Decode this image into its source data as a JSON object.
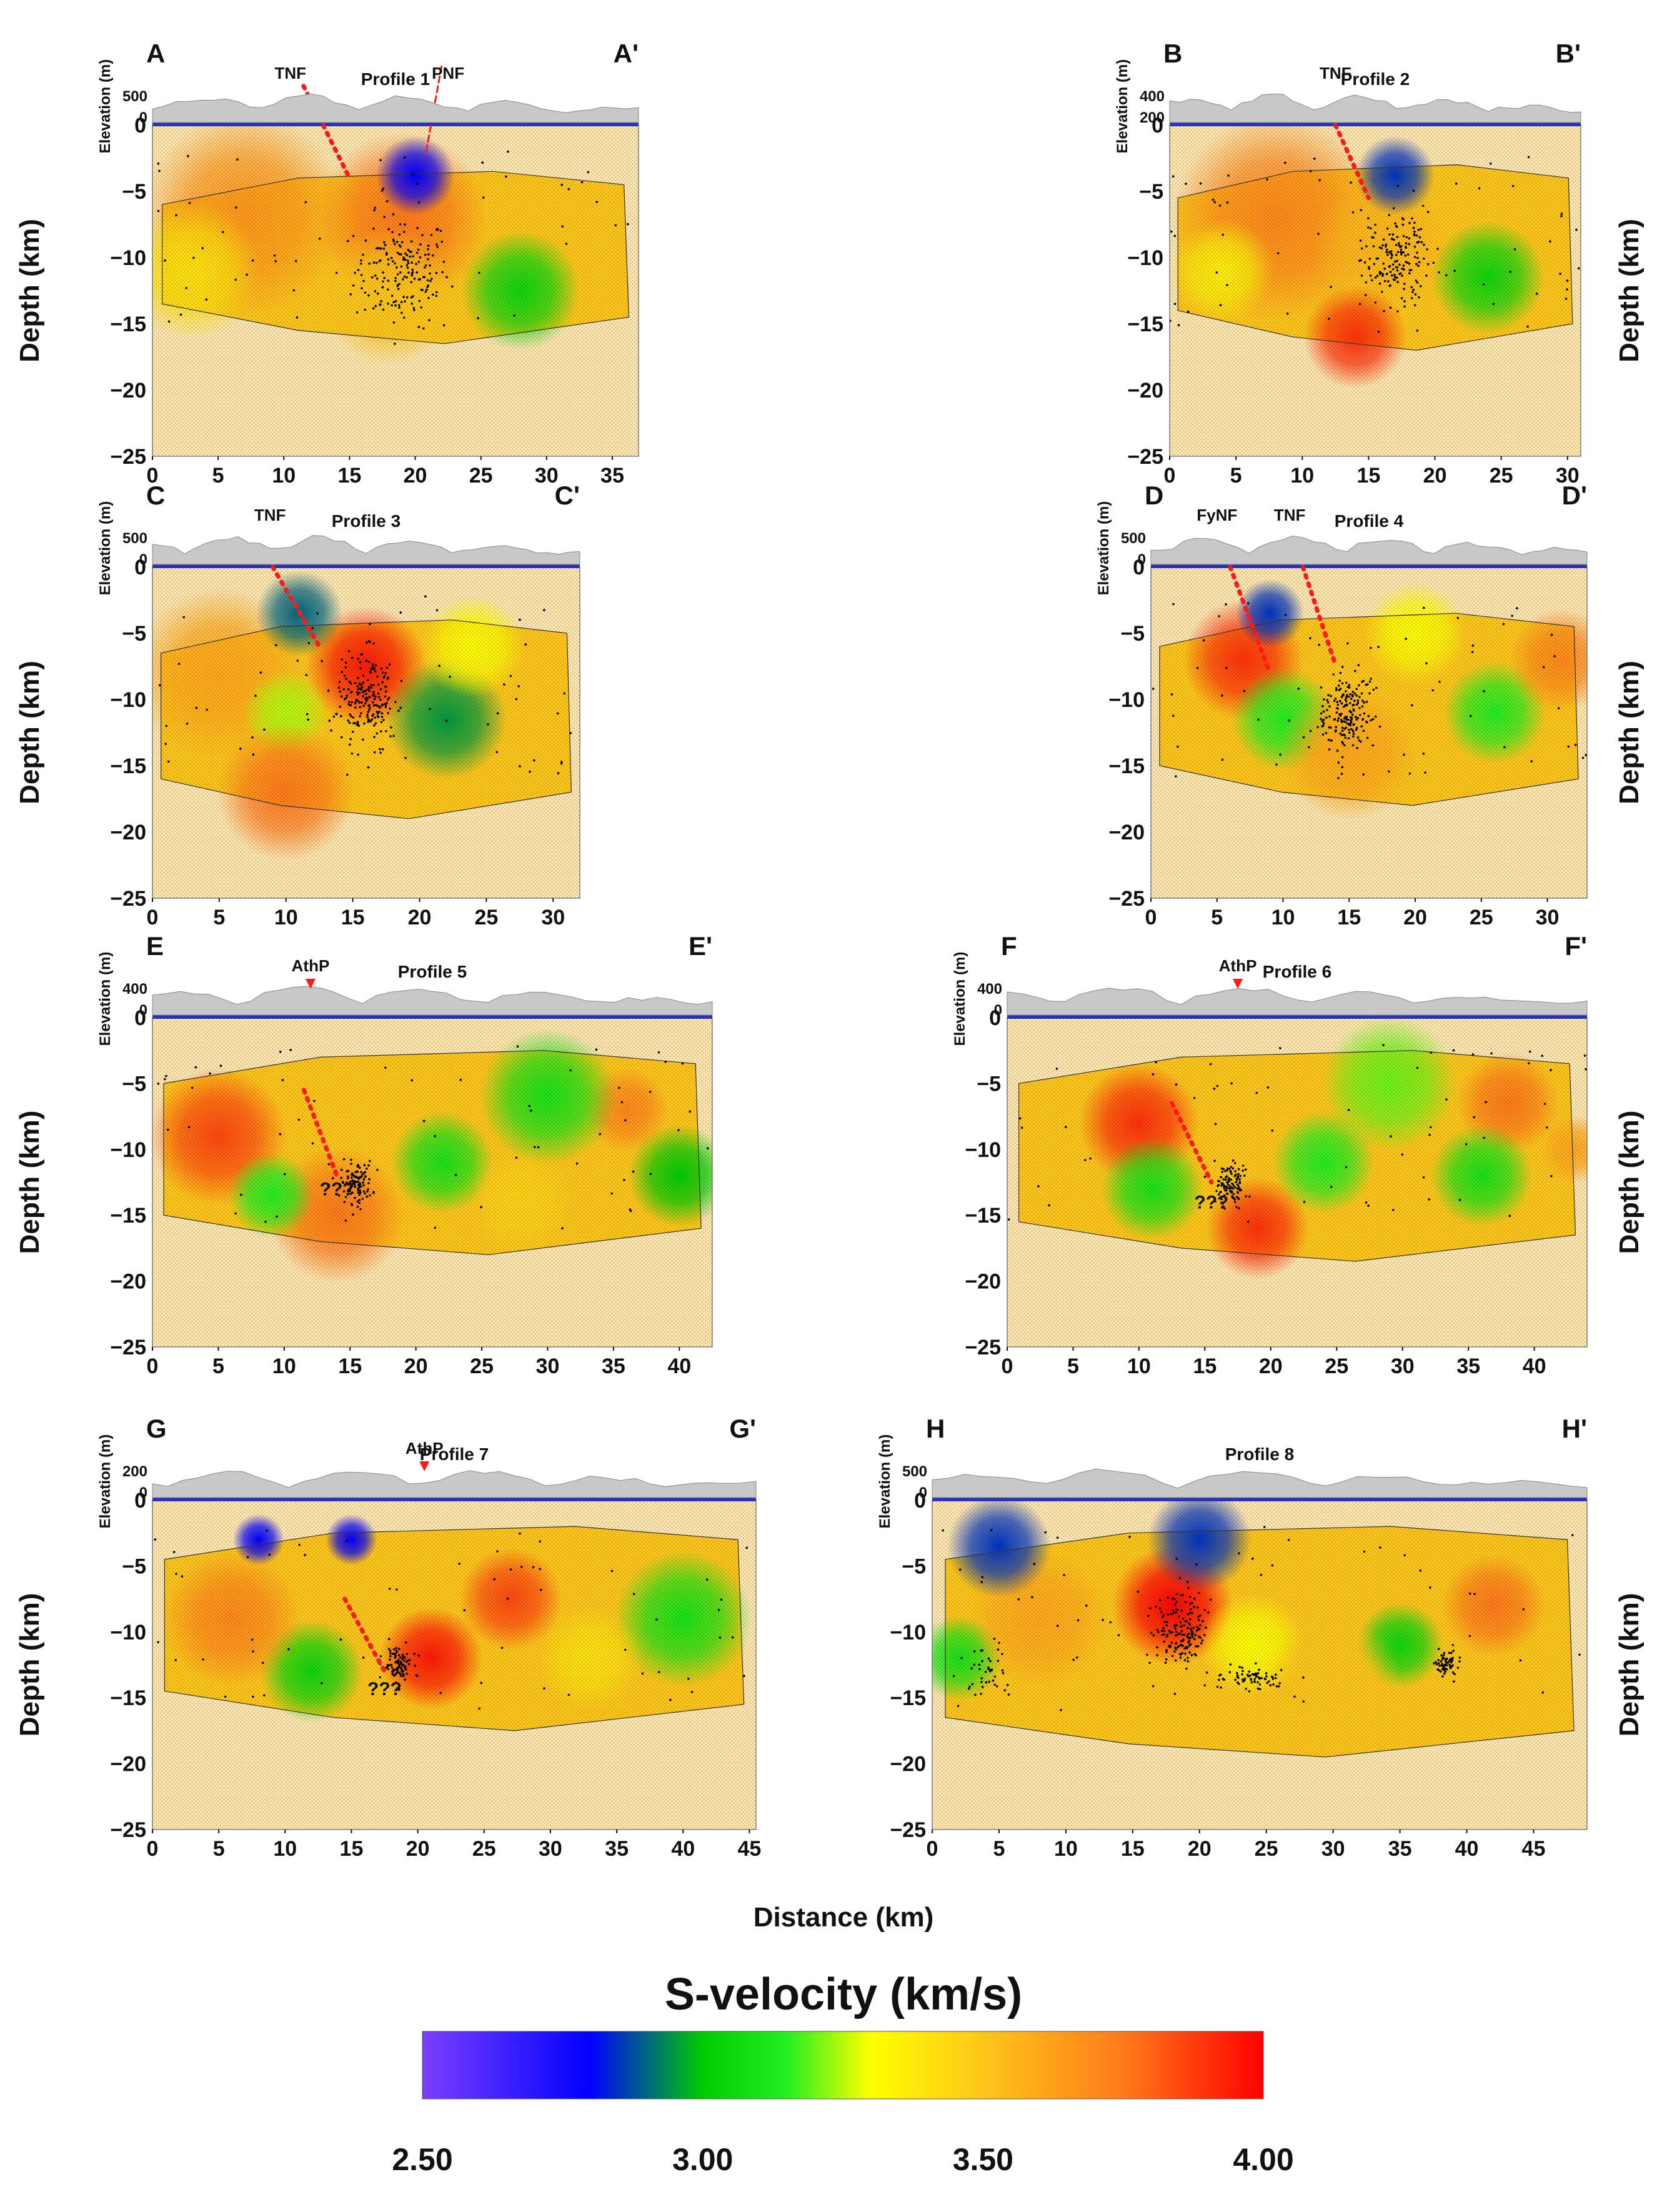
{
  "chart_data": {
    "type": "velocity_cross_sections",
    "global_xlabel": "Distance (km)",
    "colorbar": {
      "title": "S-velocity (km/s)",
      "min": 2.5,
      "max": 4.0,
      "ticks": [
        "2.50",
        "3.00",
        "3.50",
        "4.00"
      ],
      "colors": [
        {
          "v": 2.5,
          "c": "#7b3fff"
        },
        {
          "v": 2.8,
          "c": "#0000ff"
        },
        {
          "v": 3.0,
          "c": "#00cc00"
        },
        {
          "v": 3.15,
          "c": "#22ee22"
        },
        {
          "v": 3.3,
          "c": "#ffff00"
        },
        {
          "v": 3.5,
          "c": "#ffc61a"
        },
        {
          "v": 3.75,
          "c": "#ff7a1a"
        },
        {
          "v": 4.0,
          "c": "#ff0000"
        }
      ]
    },
    "profiles": [
      {
        "title": "Profile 1",
        "start_label": "A",
        "end_label": "A'",
        "x_max": 37,
        "x_ticks": [
          0,
          5,
          10,
          15,
          20,
          25,
          30,
          35
        ],
        "y_ticks": [
          0,
          -5,
          -10,
          -15,
          -20,
          -25
        ],
        "ylabel": "Depth (km)",
        "ylabel_side": "left",
        "elev_label": "Elevation (m)",
        "elev_ticks": [
          "500",
          "0"
        ],
        "annotations": [
          {
            "text": "TNF",
            "x": 10.5
          },
          {
            "text": "PNF",
            "x": 22.5
          }
        ],
        "faults": [
          {
            "x1": 11.5,
            "z1": 2,
            "x2": 15,
            "z2": -4,
            "style": "dots"
          },
          {
            "x1": 22,
            "z1": 3,
            "x2": 20.8,
            "z2": -2.2,
            "style": "dash"
          }
        ],
        "blobs": [
          {
            "x": 7,
            "z": -6.8,
            "v": 3.65,
            "r": 6
          },
          {
            "x": 19,
            "z": -7,
            "v": 3.75,
            "r": 5
          },
          {
            "x": 28,
            "z": -12.5,
            "v": 3.05,
            "r": 3.5
          },
          {
            "x": 20,
            "z": -3.8,
            "v": 2.8,
            "r": 2.3
          },
          {
            "x": 3,
            "z": -11,
            "v": 3.4,
            "r": 4
          },
          {
            "x": 18,
            "z": -13,
            "v": 3.5,
            "r": 4
          }
        ],
        "clusters": [
          {
            "x": 19,
            "z": -11,
            "sx": 3,
            "sz": 3.5,
            "n": 180
          }
        ]
      },
      {
        "title": "Profile 2",
        "start_label": "B",
        "end_label": "B'",
        "x_max": 31,
        "x_ticks": [
          0,
          5,
          10,
          15,
          20,
          25,
          30
        ],
        "y_ticks": [
          0,
          -5,
          -10,
          -15,
          -20,
          -25
        ],
        "ylabel": "Depth (km)",
        "ylabel_side": "right",
        "elev_label": "Elevation (m)",
        "elev_ticks": [
          "400",
          "200"
        ],
        "annotations": [
          {
            "text": "TNF",
            "x": 12.5
          }
        ],
        "faults": [
          {
            "x1": 12.5,
            "z1": 0,
            "x2": 15,
            "z2": -5.5,
            "style": "dots"
          }
        ],
        "blobs": [
          {
            "x": 8,
            "z": -7,
            "v": 3.7,
            "r": 6
          },
          {
            "x": 16,
            "z": -9,
            "v": 3.55,
            "r": 4
          },
          {
            "x": 24,
            "z": -11.5,
            "v": 3.05,
            "r": 3.3
          },
          {
            "x": 14,
            "z": -16,
            "v": 3.9,
            "r": 3
          },
          {
            "x": 4,
            "z": -11,
            "v": 3.35,
            "r": 3
          },
          {
            "x": 17,
            "z": -3.8,
            "v": 2.85,
            "r": 2.3
          }
        ],
        "clusters": [
          {
            "x": 17,
            "z": -10,
            "sx": 2,
            "sz": 2.8,
            "n": 170
          }
        ]
      },
      {
        "title": "Profile 3",
        "start_label": "C",
        "end_label": "C'",
        "x_max": 32,
        "x_ticks": [
          0,
          5,
          10,
          15,
          20,
          25,
          30
        ],
        "y_ticks": [
          0,
          -5,
          -10,
          -15,
          -20,
          -25
        ],
        "ylabel": "Depth (km)",
        "ylabel_side": "left",
        "elev_label": "Elevation (m)",
        "elev_ticks": [
          "500",
          "0"
        ],
        "annotations": [
          {
            "text": "TNF",
            "x": 8.8
          }
        ],
        "faults": [
          {
            "x1": 9,
            "z1": 0,
            "x2": 12.5,
            "z2": -6,
            "style": "dots"
          }
        ],
        "blobs": [
          {
            "x": 16,
            "z": -7.5,
            "v": 3.95,
            "r": 3.5
          },
          {
            "x": 5,
            "z": -8,
            "v": 3.6,
            "r": 5
          },
          {
            "x": 22,
            "z": -11.5,
            "v": 2.95,
            "r": 3.5
          },
          {
            "x": 10,
            "z": -11,
            "v": 3.25,
            "r": 2.5
          },
          {
            "x": 10,
            "z": -17,
            "v": 3.75,
            "r": 4
          },
          {
            "x": 24,
            "z": -6,
            "v": 3.3,
            "r": 3
          },
          {
            "x": 11,
            "z": -3.5,
            "v": 2.9,
            "r": 2.5
          }
        ],
        "clusters": [
          {
            "x": 16,
            "z": -10,
            "sx": 1.8,
            "sz": 3,
            "n": 200
          }
        ]
      },
      {
        "title": "Profile 4",
        "start_label": "D",
        "end_label": "D'",
        "x_max": 33,
        "x_ticks": [
          0,
          5,
          10,
          15,
          20,
          25,
          30
        ],
        "y_ticks": [
          0,
          -5,
          -10,
          -15,
          -20,
          -25
        ],
        "ylabel": "Depth (km)",
        "ylabel_side": "right",
        "elev_label": "Elevation (m)",
        "elev_ticks": [
          "500",
          "0"
        ],
        "annotations": [
          {
            "text": "FyNF",
            "x": 5
          },
          {
            "text": "TNF",
            "x": 10.5
          }
        ],
        "faults": [
          {
            "x1": 6,
            "z1": 0,
            "x2": 9,
            "z2": -8,
            "style": "dots"
          },
          {
            "x1": 11.5,
            "z1": 0,
            "x2": 14,
            "z2": -7.5,
            "style": "dots"
          }
        ],
        "blobs": [
          {
            "x": 7,
            "z": -7,
            "v": 3.9,
            "r": 3.5
          },
          {
            "x": 10,
            "z": -11.5,
            "v": 3.15,
            "r": 3
          },
          {
            "x": 20,
            "z": -5,
            "v": 3.3,
            "r": 3
          },
          {
            "x": 26,
            "z": -11,
            "v": 3.15,
            "r": 3
          },
          {
            "x": 31,
            "z": -7,
            "v": 3.7,
            "r": 3
          },
          {
            "x": 9,
            "z": -3.5,
            "v": 2.85,
            "r": 2
          },
          {
            "x": 15,
            "z": -14,
            "v": 3.6,
            "r": 4
          }
        ],
        "clusters": [
          {
            "x": 14.8,
            "z": -11,
            "sx": 1.6,
            "sz": 2.8,
            "n": 190
          }
        ]
      },
      {
        "title": "Profile 5",
        "start_label": "E",
        "end_label": "E'",
        "x_max": 42.5,
        "x_ticks": [
          0,
          5,
          10,
          15,
          20,
          25,
          30,
          35,
          40
        ],
        "y_ticks": [
          0,
          -5,
          -10,
          -15,
          -20,
          -25
        ],
        "ylabel": "Depth (km)",
        "ylabel_side": "left",
        "elev_label": "Elevation (m)",
        "elev_ticks": [
          "400",
          "0"
        ],
        "annotations": [
          {
            "text": "AthP",
            "x": 12,
            "arrow": true
          },
          {
            "text": "???",
            "x": 14,
            "z": -13.5
          }
        ],
        "faults": [
          {
            "x1": 11.5,
            "z1": -5.5,
            "x2": 14,
            "z2": -12,
            "style": "dots"
          }
        ],
        "blobs": [
          {
            "x": 5,
            "z": -9,
            "v": 3.85,
            "r": 4
          },
          {
            "x": 14,
            "z": -15,
            "v": 3.75,
            "r": 4
          },
          {
            "x": 22,
            "z": -11,
            "v": 3.1,
            "r": 3
          },
          {
            "x": 9,
            "z": -13.5,
            "v": 3.15,
            "r": 2.5
          },
          {
            "x": 36,
            "z": -7,
            "v": 3.7,
            "r": 2.5
          },
          {
            "x": 30,
            "z": -6,
            "v": 3.1,
            "r": 4
          },
          {
            "x": 40,
            "z": -12,
            "v": 3.0,
            "r": 3
          },
          {
            "x": 28,
            "z": -14,
            "v": 3.45,
            "r": 3
          }
        ],
        "clusters": [
          {
            "x": 15.5,
            "z": -12.5,
            "sx": 1.0,
            "sz": 1.3,
            "n": 110
          }
        ]
      },
      {
        "title": "Profile 6",
        "start_label": "F",
        "end_label": "F'",
        "x_max": 44,
        "x_ticks": [
          0,
          5,
          10,
          15,
          20,
          25,
          30,
          35,
          40
        ],
        "y_ticks": [
          0,
          -5,
          -10,
          -15,
          -20,
          -25
        ],
        "ylabel": "Depth (km)",
        "ylabel_side": "right",
        "elev_label": "Elevation (m)",
        "elev_ticks": [
          "400",
          "0"
        ],
        "annotations": [
          {
            "text": "AthP",
            "x": 17.5,
            "arrow": true
          },
          {
            "text": "???",
            "x": 15.5,
            "z": -14.5
          }
        ],
        "faults": [
          {
            "x1": 12.5,
            "z1": -6.5,
            "x2": 15.5,
            "z2": -12.5,
            "style": "dots"
          }
        ],
        "blobs": [
          {
            "x": 10,
            "z": -8,
            "v": 3.9,
            "r": 3.5
          },
          {
            "x": 19,
            "z": -16,
            "v": 3.9,
            "r": 3
          },
          {
            "x": 11,
            "z": -13,
            "v": 3.1,
            "r": 3
          },
          {
            "x": 24,
            "z": -11,
            "v": 3.15,
            "r": 3
          },
          {
            "x": 38,
            "z": -6.5,
            "v": 3.75,
            "r": 3
          },
          {
            "x": 36,
            "z": -12,
            "v": 3.1,
            "r": 3
          },
          {
            "x": 29,
            "z": -5,
            "v": 3.2,
            "r": 4
          },
          {
            "x": 43,
            "z": -10,
            "v": 3.6,
            "r": 2
          }
        ],
        "clusters": [
          {
            "x": 17,
            "z": -12.8,
            "sx": 1.0,
            "sz": 1.3,
            "n": 110
          }
        ]
      },
      {
        "title": "Profile 7",
        "start_label": "G",
        "end_label": "G'",
        "x_max": 45.5,
        "x_ticks": [
          0,
          5,
          10,
          15,
          20,
          25,
          30,
          35,
          40,
          45
        ],
        "y_ticks": [
          0,
          -5,
          -10,
          -15,
          -20,
          -25
        ],
        "ylabel": "Depth (km)",
        "ylabel_side": "left",
        "elev_label": "Elevation (m)",
        "elev_ticks": [
          "200",
          "0"
        ],
        "annotations": [
          {
            "text": "AthP",
            "x": 20.5,
            "arrow": true,
            "big": true
          },
          {
            "text": "???",
            "x": 17.5,
            "z": -14.8
          }
        ],
        "faults": [
          {
            "x1": 14.5,
            "z1": -7.5,
            "x2": 17.5,
            "z2": -13,
            "style": "dots"
          }
        ],
        "blobs": [
          {
            "x": 12,
            "z": -13,
            "v": 3.05,
            "r": 3
          },
          {
            "x": 21,
            "z": -12,
            "v": 3.95,
            "r": 3
          },
          {
            "x": 27,
            "z": -7.5,
            "v": 3.85,
            "r": 3
          },
          {
            "x": 6,
            "z": -9,
            "v": 3.7,
            "r": 4
          },
          {
            "x": 40,
            "z": -9,
            "v": 3.1,
            "r": 4
          },
          {
            "x": 8,
            "z": -3,
            "v": 2.8,
            "r": 1.5
          },
          {
            "x": 15,
            "z": -3,
            "v": 2.8,
            "r": 1.5
          },
          {
            "x": 33,
            "z": -12,
            "v": 3.4,
            "r": 3
          }
        ],
        "clusters": [
          {
            "x": 18.5,
            "z": -12.5,
            "sx": 0.9,
            "sz": 1.2,
            "n": 100
          }
        ]
      },
      {
        "title": "Profile 8",
        "start_label": "H",
        "end_label": "H'",
        "x_max": 49,
        "x_ticks": [
          0,
          5,
          10,
          15,
          20,
          25,
          30,
          35,
          40,
          45
        ],
        "y_ticks": [
          0,
          -5,
          -10,
          -15,
          -20,
          -25
        ],
        "ylabel": "Depth (km)",
        "ylabel_side": "right",
        "elev_label": "Elevation (m)",
        "elev_ticks": [
          "500",
          "0"
        ],
        "annotations": [],
        "faults": [],
        "blobs": [
          {
            "x": 18,
            "z": -8,
            "v": 4.0,
            "r": 3.5
          },
          {
            "x": 2,
            "z": -12,
            "v": 3.1,
            "r": 2.5
          },
          {
            "x": 35,
            "z": -11,
            "v": 3.05,
            "r": 2.5
          },
          {
            "x": 24,
            "z": -11,
            "v": 3.3,
            "r": 3
          },
          {
            "x": 42,
            "z": -8,
            "v": 3.75,
            "r": 3
          },
          {
            "x": 8,
            "z": -9,
            "v": 3.6,
            "r": 4
          },
          {
            "x": 20,
            "z": -3,
            "v": 2.85,
            "r": 3
          },
          {
            "x": 5,
            "z": -3.5,
            "v": 2.85,
            "r": 3
          },
          {
            "x": 30,
            "z": -14,
            "v": 3.5,
            "r": 4
          }
        ],
        "clusters": [
          {
            "x": 18.5,
            "z": -10,
            "sx": 1.6,
            "sz": 2.5,
            "n": 170
          },
          {
            "x": 24,
            "z": -13.5,
            "sx": 2,
            "sz": 0.8,
            "n": 70
          },
          {
            "x": 38.5,
            "z": -12.5,
            "sx": 0.8,
            "sz": 0.8,
            "n": 60
          },
          {
            "x": 4,
            "z": -13,
            "sx": 1.5,
            "sz": 1.5,
            "n": 40
          }
        ]
      }
    ]
  }
}
